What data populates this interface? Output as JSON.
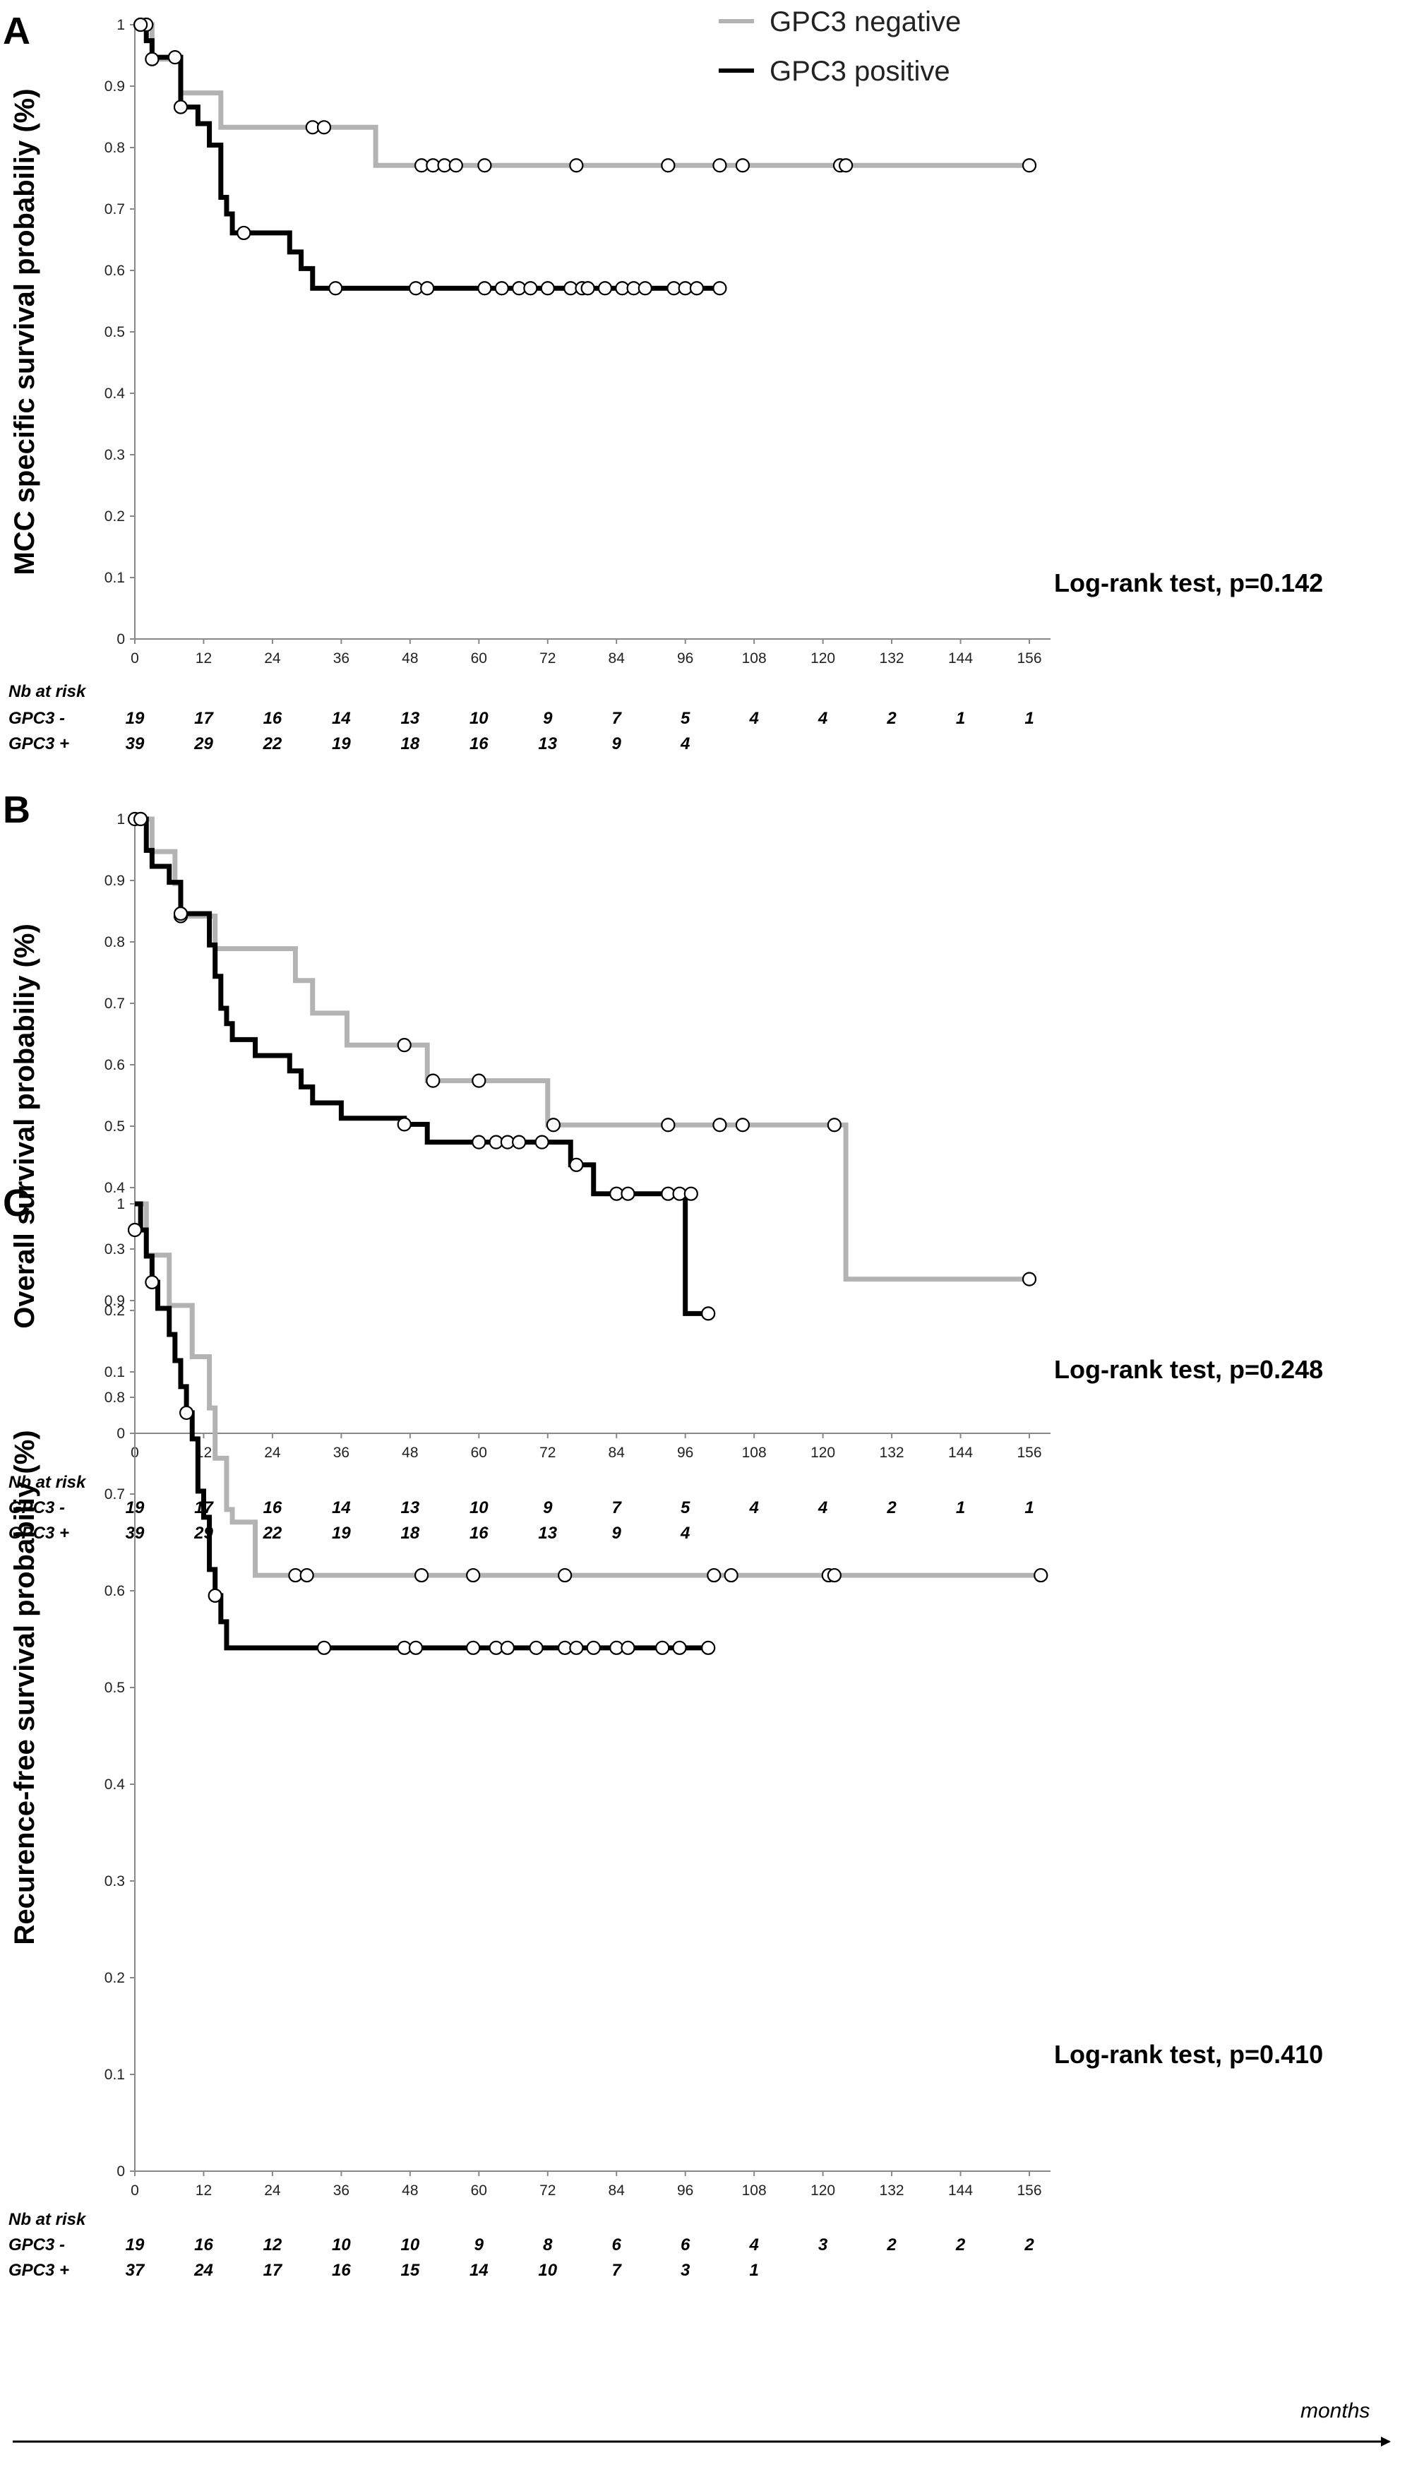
{
  "legend": [
    {
      "label": "GPC3 negative",
      "color": "#b3b3b3"
    },
    {
      "label": "GPC3 positive",
      "color": "#000000"
    }
  ],
  "colors": {
    "negative": "#b3b3b3",
    "positive": "#000000"
  },
  "x_axis_label": "months",
  "chart_data": [
    {
      "type": "line",
      "subtype": "kaplan-meier",
      "panel": "A",
      "ylabel": "MCC specific survival probabiliy (%)",
      "xlabel": "months",
      "xlim": [
        0,
        156
      ],
      "ylim": [
        0,
        1
      ],
      "x_ticks": [
        "0",
        "12",
        "24",
        "36",
        "48",
        "60",
        "72",
        "84",
        "96",
        "108",
        "120",
        "132",
        "144",
        "156"
      ],
      "y_ticks": [
        "0",
        "0.1",
        "0.2",
        "0.3",
        "0.4",
        "0.5",
        "0.6",
        "0.7",
        "0.8",
        "0.9",
        "1"
      ],
      "annotation": "Log-rank test, p=0.142",
      "risk_table": {
        "header": "Nb at risk",
        "rows": [
          {
            "label": "GPC3 -",
            "values": [
              "19",
              "17",
              "16",
              "14",
              "13",
              "10",
              "9",
              "7",
              "5",
              "4",
              "4",
              "2",
              "1",
              "1"
            ]
          },
          {
            "label": "GPC3 +",
            "values": [
              "39",
              "29",
              "22",
              "19",
              "18",
              "16",
              "13",
              "9",
              "4"
            ]
          }
        ]
      },
      "series": [
        {
          "name": "GPC3 negative",
          "steps": [
            [
              0,
              1
            ],
            [
              3,
              0.944
            ],
            [
              8,
              0.889
            ],
            [
              15,
              0.833
            ],
            [
              42,
              0.771
            ],
            [
              156,
              0.771
            ]
          ],
          "censors": [
            [
              1,
              1
            ],
            [
              2,
              1
            ],
            [
              3,
              0.944
            ],
            [
              31,
              0.833
            ],
            [
              33,
              0.833
            ],
            [
              50,
              0.771
            ],
            [
              52,
              0.771
            ],
            [
              54,
              0.771
            ],
            [
              56,
              0.771
            ],
            [
              61,
              0.771
            ],
            [
              77,
              0.771
            ],
            [
              93,
              0.771
            ],
            [
              102,
              0.771
            ],
            [
              106,
              0.771
            ],
            [
              123,
              0.771
            ],
            [
              124,
              0.771
            ],
            [
              156,
              0.771
            ]
          ]
        },
        {
          "name": "GPC3 positive",
          "steps": [
            [
              0,
              1
            ],
            [
              2,
              0.974
            ],
            [
              3,
              0.947
            ],
            [
              8,
              0.866
            ],
            [
              11,
              0.839
            ],
            [
              13,
              0.804
            ],
            [
              15,
              0.719
            ],
            [
              16,
              0.692
            ],
            [
              17,
              0.661
            ],
            [
              27,
              0.63
            ],
            [
              29,
              0.603
            ],
            [
              31,
              0.571
            ],
            [
              102,
              0.571
            ]
          ],
          "censors": [
            [
              1,
              1
            ],
            [
              7,
              0.947
            ],
            [
              8,
              0.866
            ],
            [
              19,
              0.661
            ],
            [
              35,
              0.571
            ],
            [
              49,
              0.571
            ],
            [
              51,
              0.571
            ],
            [
              61,
              0.571
            ],
            [
              64,
              0.571
            ],
            [
              67,
              0.571
            ],
            [
              69,
              0.571
            ],
            [
              72,
              0.571
            ],
            [
              76,
              0.571
            ],
            [
              78,
              0.571
            ],
            [
              79,
              0.571
            ],
            [
              82,
              0.571
            ],
            [
              85,
              0.571
            ],
            [
              87,
              0.571
            ],
            [
              89,
              0.571
            ],
            [
              94,
              0.571
            ],
            [
              96,
              0.571
            ],
            [
              98,
              0.571
            ],
            [
              102,
              0.571
            ]
          ]
        }
      ]
    },
    {
      "type": "line",
      "subtype": "kaplan-meier",
      "panel": "B",
      "ylabel": "Overall survival probabiliy (%)",
      "xlabel": "months",
      "xlim": [
        0,
        156
      ],
      "ylim": [
        0,
        1
      ],
      "x_ticks": [
        "0",
        "12",
        "24",
        "36",
        "48",
        "60",
        "72",
        "84",
        "96",
        "108",
        "120",
        "132",
        "144",
        "156"
      ],
      "y_ticks": [
        "0",
        "0.1",
        "0.2",
        "0.3",
        "0.4",
        "0.5",
        "0.6",
        "0.7",
        "0.8",
        "0.9",
        "1"
      ],
      "annotation": "Log-rank test, p=0.248",
      "risk_table": {
        "header": "Nb at risk",
        "rows": [
          {
            "label": "GPC3 -",
            "values": [
              "19",
              "17",
              "16",
              "14",
              "13",
              "10",
              "9",
              "7",
              "5",
              "4",
              "4",
              "2",
              "1",
              "1"
            ]
          },
          {
            "label": "GPC3 +",
            "values": [
              "39",
              "29",
              "22",
              "19",
              "18",
              "16",
              "13",
              "9",
              "4"
            ]
          }
        ]
      },
      "series": [
        {
          "name": "GPC3 negative",
          "steps": [
            [
              0,
              1
            ],
            [
              3,
              0.947
            ],
            [
              7,
              0.895
            ],
            [
              8,
              0.842
            ],
            [
              14,
              0.789
            ],
            [
              28,
              0.737
            ],
            [
              31,
              0.684
            ],
            [
              37,
              0.632
            ],
            [
              51,
              0.574
            ],
            [
              72,
              0.502
            ],
            [
              122,
              0.502
            ],
            [
              124,
              0.251
            ],
            [
              156,
              0.251
            ]
          ],
          "censors": [
            [
              0,
              1
            ],
            [
              1,
              1
            ],
            [
              8,
              0.842
            ],
            [
              47,
              0.632
            ],
            [
              52,
              0.574
            ],
            [
              60,
              0.574
            ],
            [
              73,
              0.502
            ],
            [
              93,
              0.502
            ],
            [
              102,
              0.502
            ],
            [
              106,
              0.502
            ],
            [
              122,
              0.502
            ],
            [
              156,
              0.251
            ]
          ]
        },
        {
          "name": "GPC3 positive",
          "steps": [
            [
              0,
              1
            ],
            [
              2,
              0.949
            ],
            [
              3,
              0.923
            ],
            [
              6,
              0.897
            ],
            [
              8,
              0.846
            ],
            [
              13,
              0.795
            ],
            [
              14,
              0.744
            ],
            [
              15,
              0.692
            ],
            [
              16,
              0.667
            ],
            [
              17,
              0.641
            ],
            [
              21,
              0.615
            ],
            [
              27,
              0.59
            ],
            [
              29,
              0.564
            ],
            [
              31,
              0.538
            ],
            [
              36,
              0.513
            ],
            [
              47,
              0.503
            ],
            [
              51,
              0.474
            ],
            [
              74,
              0.474
            ],
            [
              76,
              0.437
            ],
            [
              80,
              0.39
            ],
            [
              96,
              0.195
            ],
            [
              100,
              0.195
            ]
          ],
          "censors": [
            [
              1,
              1
            ],
            [
              8,
              0.846
            ],
            [
              47,
              0.503
            ],
            [
              60,
              0.474
            ],
            [
              63,
              0.474
            ],
            [
              65,
              0.474
            ],
            [
              67,
              0.474
            ],
            [
              71,
              0.474
            ],
            [
              77,
              0.437
            ],
            [
              84,
              0.39
            ],
            [
              86,
              0.39
            ],
            [
              93,
              0.39
            ],
            [
              95,
              0.39
            ],
            [
              97,
              0.39
            ],
            [
              100,
              0.195
            ]
          ]
        }
      ]
    },
    {
      "type": "line",
      "subtype": "kaplan-meier",
      "panel": "C",
      "ylabel": "Recurence-free survival probabiliy (%)",
      "xlabel": "months",
      "xlim": [
        0,
        156
      ],
      "ylim": [
        0,
        1
      ],
      "x_ticks": [
        "0",
        "12",
        "24",
        "36",
        "48",
        "60",
        "72",
        "84",
        "96",
        "108",
        "120",
        "132",
        "144",
        "156"
      ],
      "y_ticks": [
        "0",
        "0.1",
        "0.2",
        "0.3",
        "0.4",
        "0.5",
        "0.6",
        "0.7",
        "0.8",
        "0.9",
        "1"
      ],
      "annotation": "Log-rank test, p=0.410",
      "risk_table": {
        "header": "Nb at risk",
        "rows": [
          {
            "label": "GPC3 -",
            "values": [
              "19",
              "16",
              "12",
              "10",
              "10",
              "9",
              "8",
              "6",
              "6",
              "4",
              "3",
              "2",
              "2",
              "2"
            ]
          },
          {
            "label": "GPC3 +",
            "values": [
              "37",
              "24",
              "17",
              "16",
              "15",
              "14",
              "10",
              "7",
              "3",
              "1"
            ]
          }
        ]
      },
      "series": [
        {
          "name": "GPC3 negative",
          "steps": [
            [
              0,
              1
            ],
            [
              2,
              0.947
            ],
            [
              6,
              0.895
            ],
            [
              10,
              0.842
            ],
            [
              13,
              0.789
            ],
            [
              14,
              0.737
            ],
            [
              16,
              0.684
            ],
            [
              17,
              0.671
            ],
            [
              21,
              0.616
            ],
            [
              158,
              0.616
            ]
          ],
          "censors": [
            [
              28,
              0.616
            ],
            [
              30,
              0.616
            ],
            [
              50,
              0.616
            ],
            [
              59,
              0.616
            ],
            [
              75,
              0.616
            ],
            [
              101,
              0.616
            ],
            [
              104,
              0.616
            ],
            [
              121,
              0.616
            ],
            [
              122,
              0.616
            ],
            [
              158,
              0.616
            ]
          ]
        },
        {
          "name": "GPC3 positive",
          "steps": [
            [
              0,
              1
            ],
            [
              1,
              0.973
            ],
            [
              2,
              0.946
            ],
            [
              3,
              0.919
            ],
            [
              4,
              0.892
            ],
            [
              6,
              0.865
            ],
            [
              7,
              0.838
            ],
            [
              8,
              0.811
            ],
            [
              9,
              0.784
            ],
            [
              10,
              0.757
            ],
            [
              11,
              0.703
            ],
            [
              12,
              0.676
            ],
            [
              13,
              0.622
            ],
            [
              14,
              0.595
            ],
            [
              15,
              0.568
            ],
            [
              16,
              0.541
            ],
            [
              100,
              0.541
            ]
          ],
          "censors": [
            [
              0,
              0.973
            ],
            [
              3,
              0.919
            ],
            [
              9,
              0.784
            ],
            [
              14,
              0.595
            ],
            [
              33,
              0.541
            ],
            [
              47,
              0.541
            ],
            [
              49,
              0.541
            ],
            [
              59,
              0.541
            ],
            [
              63,
              0.541
            ],
            [
              65,
              0.541
            ],
            [
              70,
              0.541
            ],
            [
              75,
              0.541
            ],
            [
              77,
              0.541
            ],
            [
              80,
              0.541
            ],
            [
              84,
              0.541
            ],
            [
              86,
              0.541
            ],
            [
              92,
              0.541
            ],
            [
              95,
              0.541
            ],
            [
              100,
              0.541
            ]
          ]
        }
      ]
    }
  ]
}
